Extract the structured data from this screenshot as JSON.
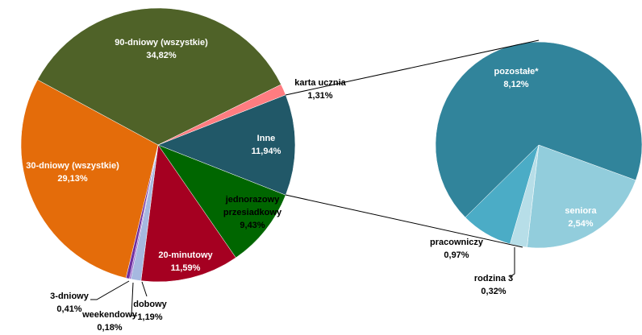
{
  "chart_data": [
    {
      "type": "pie",
      "categories": [
        "Inne",
        "jednorazowy przesiadkowy",
        "20-minutowy",
        "dobowy",
        "weekendowy",
        "3-dniowy",
        "30-dniowy (wszystkie)",
        "90-dniowy (wszystkie)",
        "karta ucznia"
      ],
      "values": [
        11.94,
        9.43,
        11.59,
        1.19,
        0.18,
        0.41,
        29.13,
        34.82,
        1.31
      ],
      "value_labels": [
        "11,94%",
        "9,43%",
        "11,59%",
        "1,19%",
        "0,18%",
        "0,41%",
        "29,13%",
        "34,82%",
        "1,31%"
      ],
      "colors": [
        "#215868",
        "#006600",
        "#a50021",
        "#a6b8e0",
        "#9966cc",
        "#7030a0",
        "#e46c0a",
        "#4f6228",
        "#ff7c80"
      ]
    },
    {
      "type": "pie",
      "categories": [
        "seniora",
        "rodzina 3",
        "pracowniczy",
        "pozostałe*"
      ],
      "values": [
        2.54,
        0.32,
        0.97,
        8.12
      ],
      "value_labels": [
        "2,54%",
        "0,32%",
        "0,97%",
        "8,12%"
      ],
      "colors": [
        "#92cddc",
        "#b7dee8",
        "#4bacc6",
        "#31849b"
      ]
    }
  ]
}
